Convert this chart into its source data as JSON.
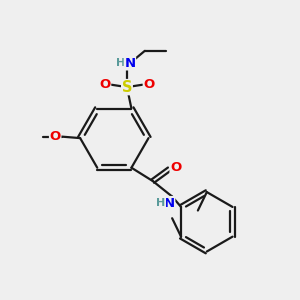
{
  "bg_color": "#efefef",
  "bond_color": "#1a1a1a",
  "bond_width": 1.6,
  "atom_colors": {
    "C": "#1a1a1a",
    "H": "#5a9a9a",
    "N": "#0000ee",
    "O": "#ee0000",
    "S": "#cccc00"
  },
  "font_size": 9.5,
  "fig_size": [
    3.0,
    3.0
  ],
  "dpi": 100
}
